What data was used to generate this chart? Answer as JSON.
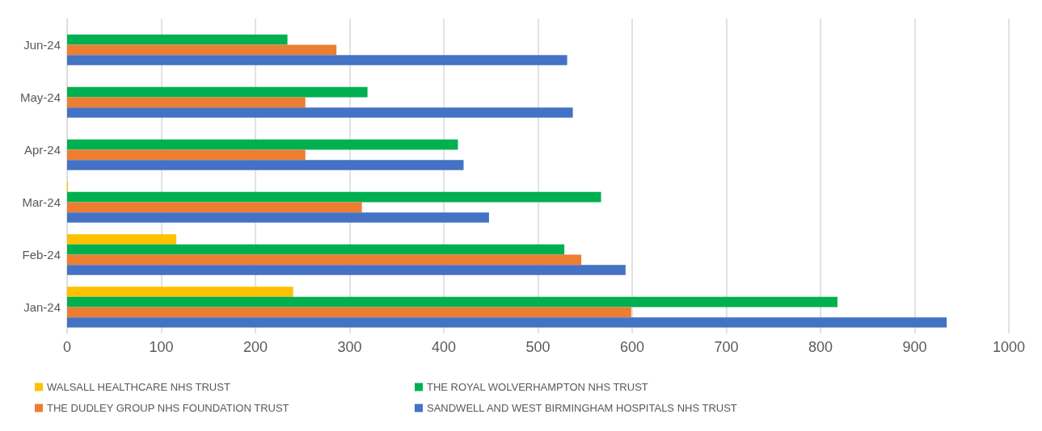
{
  "chart_data": {
    "type": "bar",
    "orientation": "horizontal",
    "categories": [
      "Jun-24",
      "May-24",
      "Apr-24",
      "Mar-24",
      "Feb-24",
      "Jan-24"
    ],
    "series": [
      {
        "name": "WALSALL HEALTHCARE NHS TRUST",
        "color": "#ffc000",
        "values": [
          0,
          0,
          0,
          1,
          116,
          240
        ]
      },
      {
        "name": "THE ROYAL WOLVERHAMPTON NHS TRUST",
        "color": "#00b050",
        "values": [
          234,
          319,
          415,
          567,
          528,
          818
        ]
      },
      {
        "name": "THE DUDLEY GROUP NHS FOUNDATION TRUST",
        "color": "#ed7d31",
        "values": [
          286,
          253,
          253,
          313,
          546,
          599
        ]
      },
      {
        "name": "SANDWELL AND WEST BIRMINGHAM HOSPITALS NHS TRUST",
        "color": "#4472c4",
        "values": [
          531,
          537,
          421,
          448,
          593,
          934
        ]
      }
    ],
    "xlim": [
      0,
      1000
    ],
    "xticks": [
      0,
      100,
      200,
      300,
      400,
      500,
      600,
      700,
      800,
      900,
      1000
    ],
    "grid": "x",
    "legend": "bottom"
  }
}
